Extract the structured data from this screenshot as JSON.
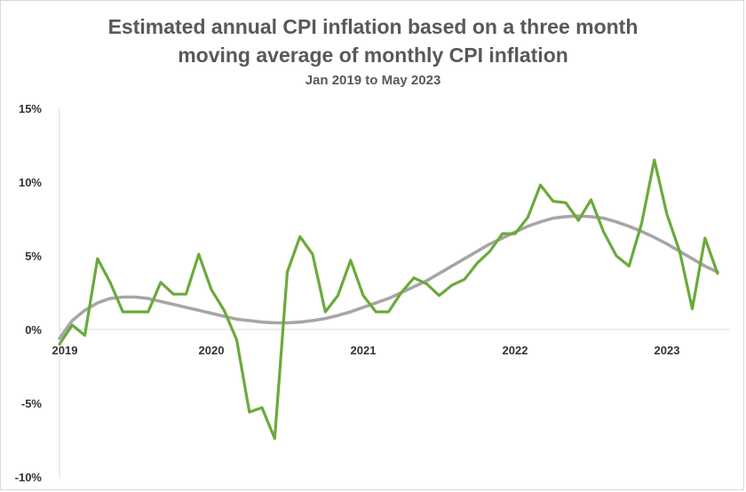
{
  "chart_data": {
    "type": "line",
    "title_line1": "Estimated annual CPI inflation based on a three month",
    "title_line2": "moving average of monthly CPI inflation",
    "subtitle": "Jan 2019 to May 2023",
    "xlabel": "",
    "ylabel": "",
    "ylim": [
      -10,
      15
    ],
    "y_ticks": [
      "15%",
      "10%",
      "5%",
      "0%",
      "-5%",
      "-10%"
    ],
    "y_tick_values": [
      15,
      10,
      5,
      0,
      -5,
      -10
    ],
    "x_ticks": [
      "2019",
      "2020",
      "2021",
      "2022",
      "2023"
    ],
    "x_tick_values": [
      "2019-01",
      "2020-01",
      "2021-01",
      "2022-01",
      "2023-01"
    ],
    "grid": false,
    "legend": "none",
    "x": [
      "2019-01",
      "2019-02",
      "2019-03",
      "2019-04",
      "2019-05",
      "2019-06",
      "2019-07",
      "2019-08",
      "2019-09",
      "2019-10",
      "2019-11",
      "2019-12",
      "2020-01",
      "2020-02",
      "2020-03",
      "2020-04",
      "2020-05",
      "2020-06",
      "2020-07",
      "2020-08",
      "2020-09",
      "2020-10",
      "2020-11",
      "2020-12",
      "2021-01",
      "2021-02",
      "2021-03",
      "2021-04",
      "2021-05",
      "2021-06",
      "2021-07",
      "2021-08",
      "2021-09",
      "2021-10",
      "2021-11",
      "2021-12",
      "2022-01",
      "2022-02",
      "2022-03",
      "2022-04",
      "2022-05",
      "2022-06",
      "2022-07",
      "2022-08",
      "2022-09",
      "2022-10",
      "2022-11",
      "2022-12",
      "2023-01",
      "2023-02",
      "2023-03",
      "2023-04",
      "2023-05"
    ],
    "series": [
      {
        "color": "#6aaa3a",
        "values": [
          -1.0,
          0.3,
          -0.4,
          4.8,
          3.2,
          1.2,
          1.2,
          1.2,
          3.2,
          2.4,
          2.4,
          5.1,
          2.7,
          1.3,
          -0.7,
          -5.6,
          -5.3,
          -7.4,
          3.9,
          6.3,
          5.1,
          1.2,
          2.3,
          4.7,
          2.3,
          1.2,
          1.2,
          2.5,
          3.5,
          3.1,
          2.3,
          3.0,
          3.4,
          4.5,
          5.3,
          6.5,
          6.5,
          7.6,
          9.8,
          8.7,
          8.6,
          7.4,
          8.8,
          6.6,
          5.0,
          4.3,
          7.2,
          11.5,
          7.8,
          5.3,
          1.4,
          6.2,
          3.8
        ]
      },
      {
        "color": "#a6a6a6",
        "values": [
          -0.6,
          0.6,
          1.3,
          1.8,
          2.1,
          2.2,
          2.2,
          2.1,
          1.9,
          1.7,
          1.5,
          1.3,
          1.1,
          0.9,
          0.7,
          0.6,
          0.5,
          0.45,
          0.45,
          0.5,
          0.6,
          0.75,
          0.95,
          1.2,
          1.5,
          1.8,
          2.1,
          2.5,
          2.9,
          3.3,
          3.8,
          4.3,
          4.8,
          5.3,
          5.8,
          6.2,
          6.6,
          7.0,
          7.3,
          7.55,
          7.65,
          7.7,
          7.65,
          7.55,
          7.3,
          7.0,
          6.65,
          6.25,
          5.8,
          5.3,
          4.8,
          4.3,
          3.9
        ]
      }
    ]
  }
}
